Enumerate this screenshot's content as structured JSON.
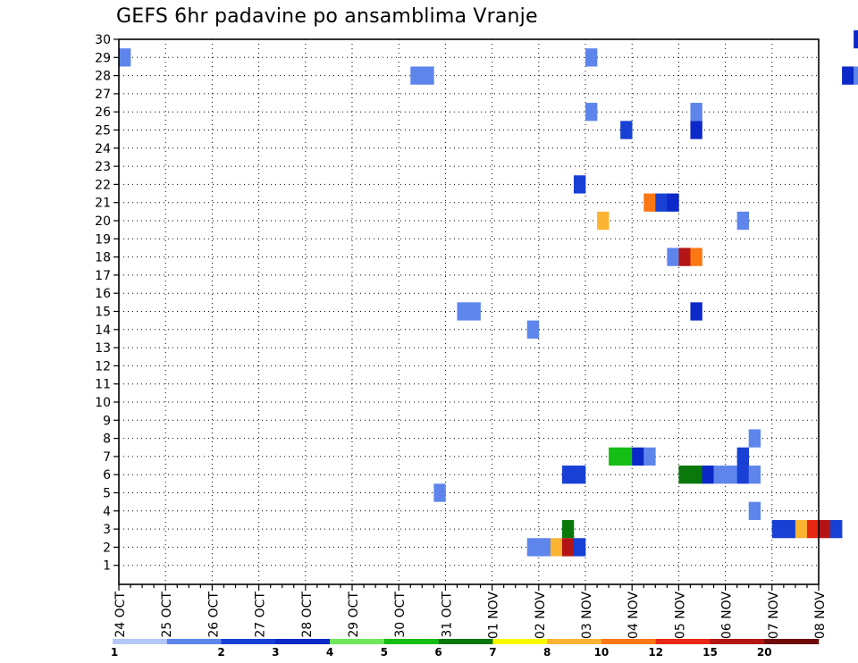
{
  "chart_data": {
    "type": "heatmap",
    "title": "GEFS 6hr padavine po ansamblima Vranje",
    "x_tick_labels": [
      "24 OCT",
      "25 OCT",
      "26 OCT",
      "27 OCT",
      "28 OCT",
      "29 OCT",
      "30 OCT",
      "31 OCT",
      "01 NOV",
      "02 NOV",
      "03 NOV",
      "04 NOV",
      "05 NOV",
      "06 NOV",
      "07 NOV",
      "08 NOV"
    ],
    "y_tick_labels": [
      "1",
      "2",
      "3",
      "4",
      "5",
      "6",
      "7",
      "8",
      "9",
      "10",
      "11",
      "12",
      "13",
      "14",
      "15",
      "16",
      "17",
      "18",
      "19",
      "20",
      "21",
      "22",
      "23",
      "24",
      "25",
      "26",
      "27",
      "28",
      "29",
      "30"
    ],
    "ylim": [
      1,
      30
    ],
    "x_steps_per_day": 4,
    "grid": true,
    "legend": {
      "position": "bottom",
      "labels": [
        "1",
        "2",
        "3",
        "4",
        "5",
        "6",
        "7",
        "8",
        "10",
        "12",
        "15",
        "20"
      ],
      "colors": [
        "#b4c8f7",
        "#5d85ec",
        "#1840d4",
        "#0c28c8",
        "#6ee85a",
        "#14be14",
        "#0a780a",
        "#fafa00",
        "#fab432",
        "#fa7814",
        "#e62814",
        "#b41414",
        "#6e0a0a"
      ]
    },
    "cells": [
      {
        "member": 30,
        "step": 63,
        "value": 3.5
      },
      {
        "member": 30,
        "step": 64,
        "value": 12
      },
      {
        "member": 30,
        "step": 65,
        "value": 20
      },
      {
        "member": 30,
        "step": 66,
        "value": 20
      },
      {
        "member": 30,
        "step": 67,
        "value": 15
      },
      {
        "member": 30,
        "step": 68,
        "value": 5
      },
      {
        "member": 29,
        "step": 0,
        "value": 1.5
      },
      {
        "member": 29,
        "step": 40,
        "value": 1.5
      },
      {
        "member": 29,
        "step": 65,
        "value": 15
      },
      {
        "member": 28,
        "step": 25,
        "value": 1.5
      },
      {
        "member": 28,
        "step": 26,
        "value": 1.5
      },
      {
        "member": 28,
        "step": 62,
        "value": 3.5
      },
      {
        "member": 28,
        "step": 63,
        "value": 1.5
      },
      {
        "member": 26,
        "step": 40,
        "value": 1.5
      },
      {
        "member": 26,
        "step": 49,
        "value": 1.5
      },
      {
        "member": 26,
        "step": 65,
        "value": 7.5
      },
      {
        "member": 25,
        "step": 43,
        "value": 2.5
      },
      {
        "member": 25,
        "step": 49,
        "value": 3.5
      },
      {
        "member": 23,
        "step": 67,
        "value": 4.5
      },
      {
        "member": 23,
        "step": 68,
        "value": 1.5
      },
      {
        "member": 22,
        "step": 39,
        "value": 2.5
      },
      {
        "member": 22,
        "step": 67,
        "value": 3.5
      },
      {
        "member": 22,
        "step": 68,
        "value": 11
      },
      {
        "member": 21,
        "step": 45,
        "value": 11
      },
      {
        "member": 21,
        "step": 46,
        "value": 2.5
      },
      {
        "member": 21,
        "step": 47,
        "value": 3.5
      },
      {
        "member": 20,
        "step": 41,
        "value": 9
      },
      {
        "member": 20,
        "step": 53,
        "value": 1.5
      },
      {
        "member": 18,
        "step": 47,
        "value": 1.5
      },
      {
        "member": 18,
        "step": 48,
        "value": 17
      },
      {
        "member": 18,
        "step": 49,
        "value": 11
      },
      {
        "member": 15,
        "step": 29,
        "value": 1.5
      },
      {
        "member": 15,
        "step": 30,
        "value": 1.5
      },
      {
        "member": 15,
        "step": 49,
        "value": 3.5
      },
      {
        "member": 15,
        "step": 66,
        "value": 1.5
      },
      {
        "member": 15,
        "step": 67,
        "value": 3.5
      },
      {
        "member": 15,
        "step": 68,
        "value": 3.5
      },
      {
        "member": 15,
        "step": 69,
        "value": 2.5
      },
      {
        "member": 16,
        "step": 66,
        "value": 3.5
      },
      {
        "member": 16,
        "step": 67,
        "value": 3.5
      },
      {
        "member": 14,
        "step": 35,
        "value": 1.5
      },
      {
        "member": 14,
        "step": 67,
        "value": 1.5
      },
      {
        "member": 14,
        "step": 68,
        "value": 15
      },
      {
        "member": 14,
        "step": 69,
        "value": 2.5
      },
      {
        "member": 8,
        "step": 54,
        "value": 1.5
      },
      {
        "member": 7,
        "step": 42,
        "value": 5.5
      },
      {
        "member": 7,
        "step": 43,
        "value": 5.5
      },
      {
        "member": 7,
        "step": 44,
        "value": 3.5
      },
      {
        "member": 7,
        "step": 45,
        "value": 1.5
      },
      {
        "member": 7,
        "step": 53,
        "value": 2.5
      },
      {
        "member": 6,
        "step": 38,
        "value": 2.5
      },
      {
        "member": 6,
        "step": 39,
        "value": 2.5
      },
      {
        "member": 6,
        "step": 48,
        "value": 6.5
      },
      {
        "member": 6,
        "step": 49,
        "value": 6.5
      },
      {
        "member": 6,
        "step": 50,
        "value": 3
      },
      {
        "member": 6,
        "step": 51,
        "value": 1.5
      },
      {
        "member": 6,
        "step": 52,
        "value": 1.5
      },
      {
        "member": 6,
        "step": 53,
        "value": 2.5
      },
      {
        "member": 6,
        "step": 54,
        "value": 1.5
      },
      {
        "member": 5,
        "step": 27,
        "value": 1.5
      },
      {
        "member": 4,
        "step": 54,
        "value": 1.5
      },
      {
        "member": 3,
        "step": 38,
        "value": 6.5
      },
      {
        "member": 3,
        "step": 56,
        "value": 2.5
      },
      {
        "member": 3,
        "step": 57,
        "value": 2.5
      },
      {
        "member": 3,
        "step": 58,
        "value": 9
      },
      {
        "member": 3,
        "step": 59,
        "value": 12
      },
      {
        "member": 3,
        "step": 60,
        "value": 15
      },
      {
        "member": 3,
        "step": 61,
        "value": 2.5
      },
      {
        "member": 2,
        "step": 35,
        "value": 1.5
      },
      {
        "member": 2,
        "step": 36,
        "value": 1.5
      },
      {
        "member": 2,
        "step": 37,
        "value": 9
      },
      {
        "member": 2,
        "step": 38,
        "value": 15
      },
      {
        "member": 2,
        "step": 39,
        "value": 2.5
      }
    ]
  }
}
